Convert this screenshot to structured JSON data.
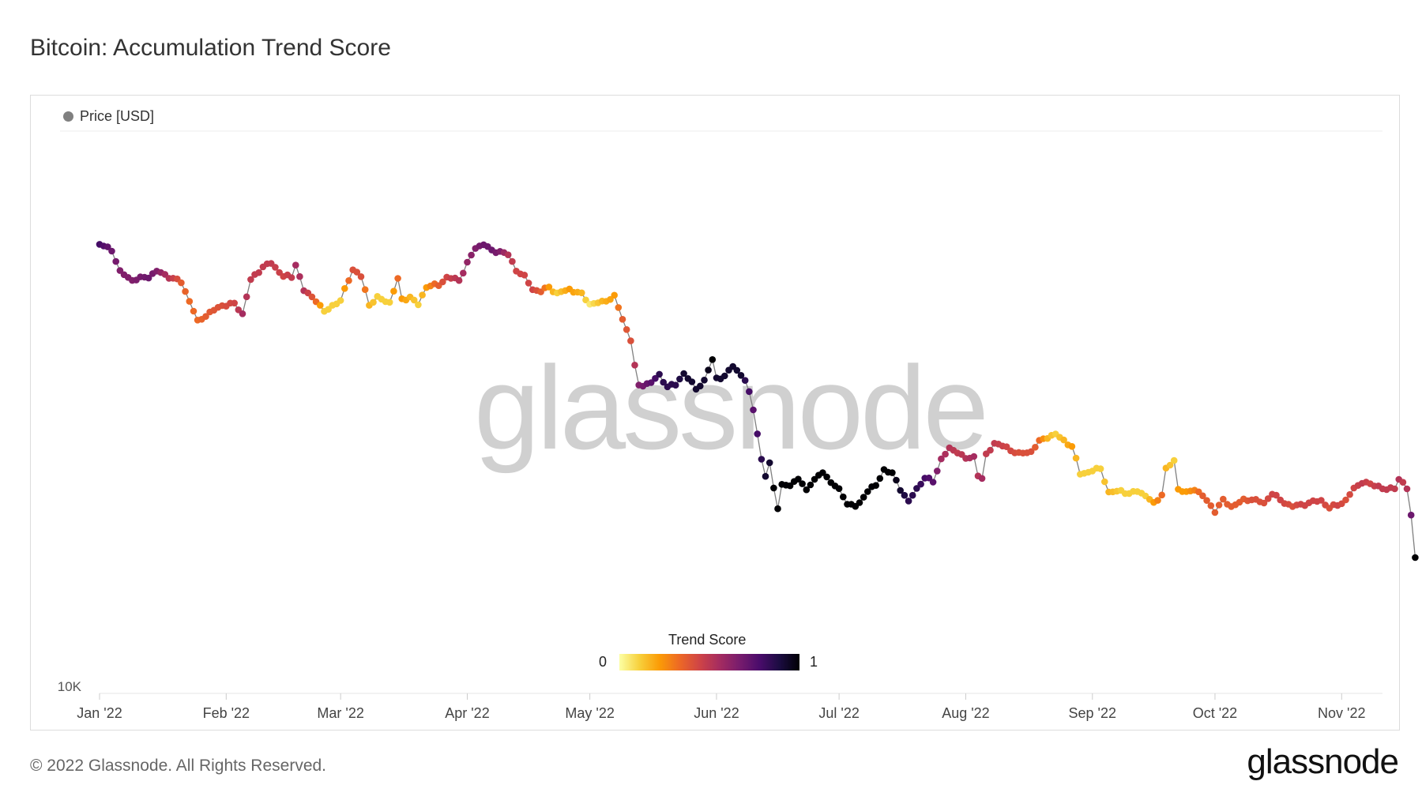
{
  "title": "Bitcoin: Accumulation Trend Score",
  "footer": "© 2022 Glassnode. All Rights Reserved.",
  "brand": "glassnode",
  "watermark": "glassnode",
  "colorbar": {
    "title": "Trend Score",
    "min_label": "0",
    "max_label": "1"
  },
  "colors": {
    "line": "#808080",
    "legend_dot": "#808080",
    "gridline": "#eeeeee"
  },
  "chart_data": {
    "type": "scatter",
    "title": "Bitcoin: Accumulation Trend Score",
    "legend": [
      {
        "name": "Price [USD]",
        "color": "#808080"
      }
    ],
    "legend_position": "top-left",
    "y_label_min": "10K",
    "x_labels": [
      "Jan '22",
      "Feb '22",
      "Mar '22",
      "Apr '22",
      "May '22",
      "Jun '22",
      "Jul '22",
      "Aug '22",
      "Sep '22",
      "Oct '22",
      "Nov '22"
    ],
    "x_start": "2022-01-01",
    "x_end": "2022-11-11",
    "y_scale": "log",
    "ylim": [
      10000,
      70000
    ],
    "colorscale": "inferno_reversed",
    "keypoints": [
      [
        0,
        47300,
        0.85
      ],
      [
        3,
        46400,
        0.75
      ],
      [
        5,
        43000,
        0.7
      ],
      [
        8,
        41800,
        0.7
      ],
      [
        12,
        42300,
        0.75
      ],
      [
        14,
        43100,
        0.7
      ],
      [
        17,
        42300,
        0.55
      ],
      [
        20,
        41500,
        0.35
      ],
      [
        22,
        38900,
        0.3
      ],
      [
        24,
        36200,
        0.3
      ],
      [
        26,
        37000,
        0.35
      ],
      [
        30,
        38300,
        0.4
      ],
      [
        33,
        38500,
        0.45
      ],
      [
        35,
        37200,
        0.6
      ],
      [
        37,
        41800,
        0.5
      ],
      [
        40,
        43800,
        0.5
      ],
      [
        42,
        44300,
        0.5
      ],
      [
        45,
        42400,
        0.45
      ],
      [
        47,
        42200,
        0.5
      ],
      [
        48,
        44200,
        0.6
      ],
      [
        50,
        40300,
        0.55
      ],
      [
        53,
        39000,
        0.3
      ],
      [
        55,
        37400,
        0.1
      ],
      [
        57,
        38300,
        0.1
      ],
      [
        59,
        38900,
        0.1
      ],
      [
        62,
        43400,
        0.4
      ],
      [
        64,
        42300,
        0.4
      ],
      [
        66,
        38400,
        0.15
      ],
      [
        68,
        39300,
        0.1
      ],
      [
        71,
        38700,
        0.1
      ],
      [
        73,
        41900,
        0.3
      ],
      [
        74,
        39100,
        0.2
      ],
      [
        76,
        39400,
        0.15
      ],
      [
        78,
        38400,
        0.1
      ],
      [
        80,
        40900,
        0.2
      ],
      [
        83,
        41100,
        0.35
      ],
      [
        85,
        42200,
        0.45
      ],
      [
        88,
        41800,
        0.55
      ],
      [
        90,
        44300,
        0.65
      ],
      [
        92,
        46700,
        0.7
      ],
      [
        94,
        47400,
        0.75
      ],
      [
        96,
        46200,
        0.75
      ],
      [
        98,
        46200,
        0.7
      ],
      [
        100,
        45600,
        0.55
      ],
      [
        102,
        43300,
        0.45
      ],
      [
        104,
        42300,
        0.45
      ],
      [
        106,
        40500,
        0.45
      ],
      [
        108,
        40200,
        0.35
      ],
      [
        110,
        40800,
        0.2
      ],
      [
        112,
        39900,
        0.1
      ],
      [
        115,
        40500,
        0.2
      ],
      [
        118,
        39800,
        0.15
      ],
      [
        120,
        38500,
        0.05
      ],
      [
        123,
        38700,
        0.15
      ],
      [
        126,
        39500,
        0.2
      ],
      [
        128,
        36500,
        0.35
      ],
      [
        130,
        34000,
        0.4
      ],
      [
        131,
        31000,
        0.55
      ],
      [
        132,
        29000,
        0.7
      ],
      [
        135,
        29300,
        0.8
      ],
      [
        137,
        30100,
        0.9
      ],
      [
        139,
        28900,
        0.9
      ],
      [
        141,
        29100,
        0.9
      ],
      [
        143,
        30300,
        0.95
      ],
      [
        146,
        28700,
        0.95
      ],
      [
        148,
        29500,
        0.95
      ],
      [
        150,
        31700,
        1.0
      ],
      [
        151,
        29800,
        0.95
      ],
      [
        153,
        29900,
        0.95
      ],
      [
        155,
        31100,
        0.95
      ],
      [
        157,
        30100,
        0.95
      ],
      [
        158,
        29500,
        0.9
      ],
      [
        159,
        28300,
        0.85
      ],
      [
        160,
        26800,
        0.8
      ],
      [
        162,
        22400,
        0.9
      ],
      [
        163,
        21200,
        0.95
      ],
      [
        164,
        22200,
        0.95
      ],
      [
        165,
        20400,
        1.0
      ],
      [
        166,
        19000,
        1.0
      ],
      [
        167,
        20500,
        1.0
      ],
      [
        169,
        20600,
        1.0
      ],
      [
        171,
        21000,
        1.0
      ],
      [
        173,
        20200,
        1.0
      ],
      [
        174,
        20700,
        1.0
      ],
      [
        176,
        21200,
        1.0
      ],
      [
        177,
        21500,
        1.0
      ],
      [
        179,
        20800,
        1.0
      ],
      [
        181,
        20200,
        1.0
      ],
      [
        182,
        19800,
        1.0
      ],
      [
        183,
        19300,
        1.0
      ],
      [
        185,
        19100,
        1.0
      ],
      [
        186,
        19300,
        1.0
      ],
      [
        188,
        20200,
        1.0
      ],
      [
        190,
        20500,
        1.0
      ],
      [
        192,
        21700,
        1.0
      ],
      [
        194,
        21400,
        1.0
      ],
      [
        196,
        20300,
        0.95
      ],
      [
        198,
        19400,
        0.9
      ],
      [
        200,
        20300,
        0.9
      ],
      [
        202,
        21100,
        0.85
      ],
      [
        204,
        20800,
        0.8
      ],
      [
        206,
        22500,
        0.6
      ],
      [
        208,
        23300,
        0.55
      ],
      [
        210,
        23100,
        0.5
      ],
      [
        212,
        22500,
        0.55
      ],
      [
        214,
        22700,
        0.6
      ],
      [
        215,
        21300,
        0.55
      ],
      [
        216,
        21000,
        0.6
      ],
      [
        217,
        22800,
        0.5
      ],
      [
        219,
        23800,
        0.5
      ],
      [
        222,
        23400,
        0.45
      ],
      [
        225,
        22900,
        0.4
      ],
      [
        228,
        23100,
        0.4
      ],
      [
        230,
        23900,
        0.3
      ],
      [
        232,
        24300,
        0.15
      ],
      [
        234,
        24500,
        0.1
      ],
      [
        236,
        24000,
        0.15
      ],
      [
        238,
        23500,
        0.2
      ],
      [
        240,
        21400,
        0.1
      ],
      [
        242,
        21500,
        0.1
      ],
      [
        245,
        21800,
        0.1
      ],
      [
        247,
        20000,
        0.15
      ],
      [
        250,
        20200,
        0.1
      ],
      [
        252,
        19900,
        0.1
      ],
      [
        254,
        20200,
        0.1
      ],
      [
        256,
        19800,
        0.1
      ],
      [
        258,
        19300,
        0.2
      ],
      [
        260,
        19900,
        0.3
      ],
      [
        261,
        21700,
        0.15
      ],
      [
        263,
        22400,
        0.1
      ],
      [
        264,
        20300,
        0.2
      ],
      [
        266,
        20000,
        0.2
      ],
      [
        268,
        20300,
        0.25
      ],
      [
        270,
        19800,
        0.35
      ],
      [
        273,
        18800,
        0.35
      ],
      [
        275,
        19500,
        0.35
      ],
      [
        277,
        19100,
        0.35
      ],
      [
        280,
        19500,
        0.35
      ],
      [
        282,
        19600,
        0.4
      ],
      [
        285,
        19300,
        0.4
      ],
      [
        287,
        20000,
        0.45
      ],
      [
        289,
        19500,
        0.45
      ],
      [
        292,
        19100,
        0.4
      ],
      [
        294,
        19200,
        0.45
      ],
      [
        297,
        19400,
        0.45
      ],
      [
        299,
        19500,
        0.45
      ],
      [
        301,
        19000,
        0.4
      ],
      [
        303,
        19200,
        0.45
      ],
      [
        305,
        19500,
        0.4
      ],
      [
        307,
        20300,
        0.45
      ],
      [
        309,
        20800,
        0.5
      ],
      [
        311,
        20600,
        0.45
      ],
      [
        313,
        20500,
        0.5
      ],
      [
        315,
        20200,
        0.5
      ],
      [
        317,
        20400,
        0.5
      ],
      [
        318,
        21000,
        0.55
      ],
      [
        319,
        20700,
        0.5
      ],
      [
        320,
        20300,
        0.55
      ],
      [
        321,
        18500,
        0.75
      ],
      [
        322,
        16000,
        1.0
      ]
    ]
  }
}
